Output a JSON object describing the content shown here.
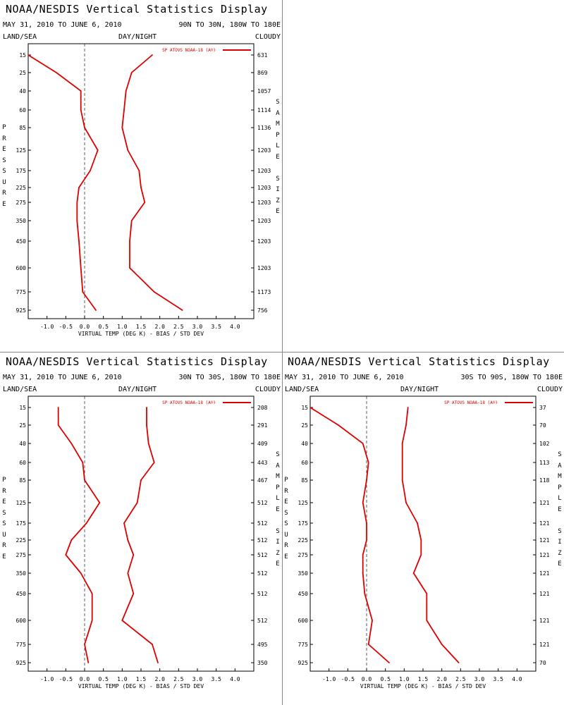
{
  "panels": [
    {
      "title": "NOAA/NESDIS Vertical Statistics Display",
      "date_range": "MAY 31, 2010 TO JUNE 6, 2010",
      "region": "90N TO 30N, 180W TO 180E",
      "surface_label": "LAND/SEA",
      "time_label": "DAY/NIGHT",
      "sky_label": "CLOUDY",
      "y_axis_label": "PRESSURE",
      "right_axis_label": "SAMPLE SIZE",
      "x_axis_label": "VIRTUAL TEMP (DEG K) - BIAS / STD DEV",
      "legend": "SP ATOVS NOAA-18 (A®)"
    },
    {
      "title": "NOAA/NESDIS Vertical Statistics Display",
      "date_range": "MAY 31, 2010 TO JUNE 6, 2010",
      "region": "30N TO 30S, 180W TO 180E",
      "surface_label": "LAND/SEA",
      "time_label": "DAY/NIGHT",
      "sky_label": "CLOUDY",
      "y_axis_label": "PRESSURE",
      "right_axis_label": "SAMPLE SIZE",
      "x_axis_label": "VIRTUAL TEMP (DEG K) - BIAS / STD DEV",
      "legend": "SP ATOVS NOAA-18 (A®)"
    },
    {
      "title": "NOAA/NESDIS Vertical Statistics Display",
      "date_range": "MAY 31, 2010 TO JUNE 6, 2010",
      "region": "30S TO 90S, 180W TO 180E",
      "surface_label": "LAND/SEA",
      "time_label": "DAY/NIGHT",
      "sky_label": "CLOUDY",
      "y_axis_label": "PRESSURE",
      "right_axis_label": "SAMPLE SIZE",
      "x_axis_label": "VIRTUAL TEMP (DEG K) - BIAS / STD DEV",
      "legend": "SP ATOVS NOAA-18 (A®)"
    }
  ],
  "chart_data": [
    {
      "type": "line",
      "xlabel": "VIRTUAL TEMP (DEG K) - BIAS / STD DEV",
      "ylabel": "PRESSURE",
      "xlim": [
        -1.5,
        4.5
      ],
      "xticks": [
        "-1.0",
        "-0.5",
        "0.0",
        "0.5",
        "1.0",
        "1.5",
        "2.0",
        "2.5",
        "3.0",
        "3.5",
        "4.0"
      ],
      "pressure_levels": [
        15,
        25,
        40,
        60,
        85,
        125,
        175,
        225,
        275,
        350,
        450,
        600,
        775,
        925
      ],
      "sample_size": [
        "631",
        "869",
        "1057",
        "1114",
        "1136",
        "1203",
        "1203",
        "1203",
        "1203",
        "1203",
        "1203",
        "1203",
        "1173",
        "756"
      ],
      "line_color": "#dd0000",
      "series": [
        {
          "name": "SP ATOVS NOAA-18 (A®)",
          "metric": "bias",
          "values": [
            -1.5,
            -0.75,
            -0.1,
            -0.1,
            0.0,
            0.35,
            0.15,
            -0.15,
            -0.2,
            -0.2,
            -0.15,
            -0.1,
            -0.05,
            0.3
          ]
        },
        {
          "metric": "std_dev",
          "values": [
            1.8,
            1.25,
            1.1,
            1.05,
            1.0,
            1.15,
            1.45,
            1.5,
            1.6,
            1.25,
            1.2,
            1.2,
            1.85,
            2.6
          ]
        }
      ]
    },
    {
      "type": "line",
      "xlabel": "VIRTUAL TEMP (DEG K) - BIAS / STD DEV",
      "ylabel": "PRESSURE",
      "xlim": [
        -1.5,
        4.5
      ],
      "xticks": [
        "-1.0",
        "-0.5",
        "0.0",
        "0.5",
        "1.0",
        "1.5",
        "2.0",
        "2.5",
        "3.0",
        "3.5",
        "4.0"
      ],
      "pressure_levels": [
        15,
        25,
        40,
        60,
        85,
        125,
        175,
        225,
        275,
        350,
        450,
        600,
        775,
        925
      ],
      "sample_size": [
        "208",
        "291",
        "409",
        "443",
        "467",
        "512",
        "512",
        "512",
        "512",
        "512",
        "512",
        "512",
        "495",
        "350"
      ],
      "line_color": "#dd0000",
      "series": [
        {
          "name": "SP ATOVS NOAA-18 (A®)",
          "metric": "bias",
          "values": [
            -0.7,
            -0.7,
            -0.35,
            -0.05,
            0.0,
            0.4,
            0.05,
            -0.35,
            -0.5,
            -0.1,
            0.2,
            0.2,
            0.0,
            0.1
          ]
        },
        {
          "metric": "std_dev",
          "values": [
            1.65,
            1.65,
            1.7,
            1.85,
            1.5,
            1.4,
            1.05,
            1.15,
            1.3,
            1.15,
            1.3,
            1.0,
            1.8,
            1.95
          ]
        }
      ]
    },
    {
      "type": "line",
      "xlabel": "VIRTUAL TEMP (DEG K) - BIAS / STD DEV",
      "ylabel": "PRESSURE",
      "xlim": [
        -1.5,
        4.5
      ],
      "xticks": [
        "-1.0",
        "-0.5",
        "0.0",
        "0.5",
        "1.0",
        "1.5",
        "2.0",
        "2.5",
        "3.0",
        "3.5",
        "4.0"
      ],
      "pressure_levels": [
        15,
        25,
        40,
        60,
        85,
        125,
        175,
        225,
        275,
        350,
        450,
        600,
        775,
        925
      ],
      "sample_size": [
        "37",
        "70",
        "102",
        "113",
        "118",
        "121",
        "121",
        "121",
        "121",
        "121",
        "121",
        "121",
        "121",
        "70"
      ],
      "line_color": "#dd0000",
      "series": [
        {
          "name": "SP ATOVS NOAA-18 (A®)",
          "metric": "bias",
          "values": [
            -1.5,
            -0.75,
            -0.1,
            0.05,
            0.0,
            -0.1,
            0.0,
            0.0,
            -0.1,
            -0.1,
            -0.05,
            0.15,
            0.05,
            0.6
          ]
        },
        {
          "metric": "std_dev",
          "values": [
            1.1,
            1.05,
            0.95,
            0.95,
            0.95,
            1.05,
            1.35,
            1.45,
            1.45,
            1.25,
            1.6,
            1.6,
            2.0,
            2.45
          ]
        }
      ]
    }
  ]
}
